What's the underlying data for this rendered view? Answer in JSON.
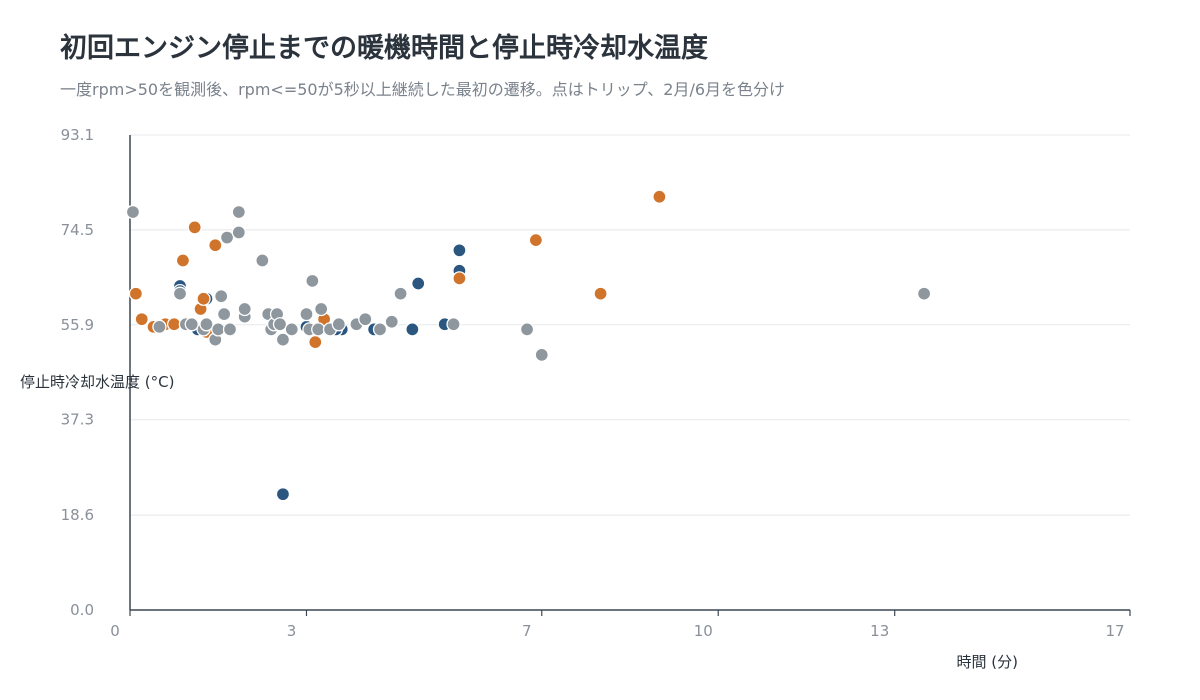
{
  "title": "初回エンジン停止までの暖機時間と停止時冷却水温度",
  "subtitle": "一度rpm>50を観測後、rpm<=50が5秒以上継続した最初の遷移。点はトリップ、2月/6月を色分け",
  "colors": {
    "series_a": "#2a5680",
    "series_b": "#d0742b",
    "series_c": "#8e969e",
    "axis": "#3b4652",
    "grid": "#e6e8eb",
    "tick_text": "#8a9099"
  },
  "chart_data": {
    "type": "scatter",
    "title": "初回エンジン停止までの暖機時間と停止時冷却水温度",
    "subtitle": "一度rpm>50を観測後、rpm<=50が5秒以上継続した最初の遷移。点はトリップ、2月/6月を色分け",
    "xlabel": "時間 (分)",
    "ylabel": "停止時冷却水温度 (°C)",
    "xlim": [
      0,
      17
    ],
    "ylim": [
      0,
      93.1
    ],
    "xticks": [
      0,
      3,
      7,
      10,
      13,
      17
    ],
    "xtick_labels": [
      "0",
      "3",
      "7",
      "10",
      "13",
      "17"
    ],
    "yticks": [
      0,
      18.6,
      37.3,
      55.9,
      74.5,
      93.1
    ],
    "ytick_labels": [
      "0.0",
      "18.6",
      "37.3",
      "55.9",
      "74.5",
      "93.1"
    ],
    "grid": "horizontal",
    "legend": "none",
    "series": [
      {
        "color": "#2a5680",
        "x": [
          0.85,
          0.85,
          1.3,
          1.15,
          2.6,
          3.0,
          3.3,
          3.6,
          3.5,
          4.15,
          4.8,
          4.9,
          5.35,
          5.6,
          5.6
        ],
        "y": [
          63.5,
          62.5,
          61.0,
          55.0,
          22.7,
          55.5,
          55.3,
          55.0,
          55.0,
          55.0,
          55.0,
          64.0,
          56.0,
          66.5,
          70.5
        ],
        "shade": [
          0,
          0,
          0,
          0,
          0,
          0,
          0,
          0,
          0,
          0,
          0,
          0,
          0,
          0,
          0
        ]
      },
      {
        "color": "#d0742b",
        "x": [
          0.1,
          0.2,
          0.4,
          0.6,
          0.75,
          0.9,
          1.1,
          1.2,
          1.25,
          1.3,
          1.45,
          3.15,
          3.3,
          5.6,
          6.9,
          8.0,
          9.0
        ],
        "y": [
          62.0,
          57.0,
          55.5,
          56.0,
          56.0,
          68.5,
          75.0,
          59.0,
          61.0,
          54.5,
          71.5,
          52.5,
          57.0,
          65.0,
          72.5,
          62.0,
          81.0
        ],
        "shade": [
          0,
          0,
          0,
          0,
          0,
          0,
          0,
          0,
          0,
          0,
          0,
          0,
          0,
          0,
          0,
          0,
          0
        ]
      },
      {
        "color": "#8e969e",
        "x": [
          0.05,
          0.5,
          0.85,
          0.95,
          1.05,
          1.25,
          1.3,
          1.45,
          1.5,
          1.55,
          1.6,
          1.65,
          1.7,
          1.85,
          1.85,
          1.95,
          1.95,
          2.25,
          2.35,
          2.4,
          2.45,
          2.5,
          2.55,
          2.6,
          2.75,
          3.0,
          3.05,
          3.1,
          3.2,
          3.25,
          3.4,
          3.55,
          3.85,
          4.0,
          4.25,
          4.45,
          4.6,
          5.5,
          6.75,
          7.0,
          13.5
        ],
        "y": [
          78.0,
          55.5,
          62.0,
          56.0,
          56.0,
          55.0,
          56.0,
          53.0,
          55.0,
          61.5,
          58.0,
          73.0,
          55.0,
          78.0,
          74.0,
          57.5,
          59.0,
          68.5,
          58.0,
          55.0,
          56.0,
          58.0,
          56.0,
          53.0,
          55.0,
          58.0,
          55.0,
          64.5,
          55.0,
          59.0,
          55.0,
          56.0,
          56.0,
          57.0,
          55.0,
          56.5,
          62.0,
          56.0,
          55.0,
          50.0,
          62.0
        ],
        "shade": [
          0,
          0,
          0,
          0,
          0,
          0,
          0,
          0,
          0,
          0,
          0,
          0,
          0,
          0,
          0,
          0,
          0,
          0,
          0,
          0,
          0,
          0,
          0,
          0,
          0,
          0,
          0,
          0,
          0,
          0,
          0,
          0,
          0,
          0,
          0,
          0,
          0,
          0,
          0,
          0,
          0
        ]
      }
    ]
  }
}
